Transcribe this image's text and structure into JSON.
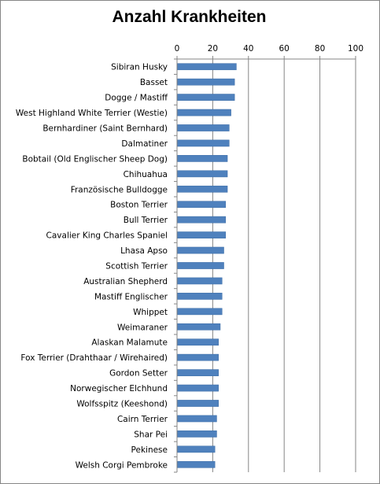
{
  "chart_data": {
    "type": "bar",
    "orientation": "horizontal",
    "title": "Anzahl Krankheiten",
    "xlabel": "",
    "ylabel": "",
    "xlim": [
      0,
      100
    ],
    "x_ticks": [
      0,
      20,
      40,
      60,
      80,
      100
    ],
    "x_axis_position": "top",
    "grid": true,
    "legend": "none",
    "bar_color": "#4F81BD",
    "categories": [
      "Sibiran Husky",
      "Basset",
      "Dogge / Mastiff",
      "West Highland White Terrier (Westie)",
      "Bernhardiner (Saint Bernhard)",
      "Dalmatiner",
      "Bobtail (Old Englischer Sheep Dog)",
      "Chihuahua",
      "Französische Bulldogge",
      "Boston Terrier",
      "Bull Terrier",
      "Cavalier King Charles Spaniel",
      "Lhasa Apso",
      "Scottish Terrier",
      "Australian Shepherd",
      "Mastiff Englischer",
      "Whippet",
      "Weimaraner",
      "Alaskan Malamute",
      "Fox Terrier (Drahthaar / Wirehaired)",
      "Gordon Setter",
      "Norwegischer Elchhund",
      "Wolfsspitz (Keeshond)",
      "Cairn Terrier",
      "Shar Pei",
      "Pekinese",
      "Welsh Corgi Pembroke"
    ],
    "values": [
      33,
      32,
      32,
      30,
      29,
      29,
      28,
      28,
      28,
      27,
      27,
      27,
      26,
      26,
      25,
      25,
      25,
      24,
      23,
      23,
      23,
      23,
      23,
      22,
      22,
      21,
      21
    ]
  }
}
